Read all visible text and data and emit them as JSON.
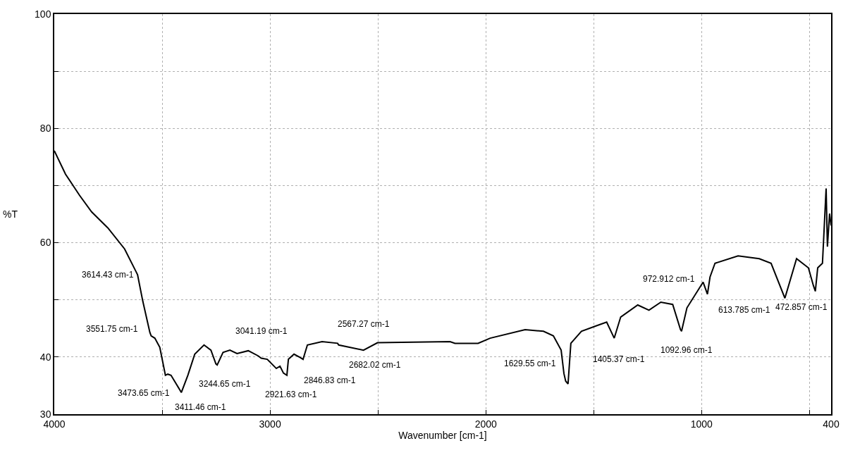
{
  "chart_data": {
    "type": "line",
    "xlabel": "Wavenumber [cm-1]",
    "ylabel": "%T",
    "xlim": [
      4000,
      400
    ],
    "ylim": [
      30,
      100
    ],
    "xticks": [
      4000,
      {
        "value": 3500,
        "label": null
      },
      3000,
      {
        "value": 2500,
        "label": null
      },
      2000,
      {
        "value": 1500,
        "label": null
      },
      1000,
      {
        "value": 500,
        "label": null
      },
      400
    ],
    "yticks": [
      30,
      40,
      {
        "value": 50,
        "label": null
      },
      60,
      {
        "value": 70,
        "label": null
      },
      80,
      {
        "value": 90,
        "label": null
      },
      100
    ],
    "grid": true,
    "marker": "none",
    "line_style": "solid",
    "series": [
      {
        "color": "#000000",
        "x": [
          4000,
          3948,
          3883,
          3827,
          3752,
          3674,
          3622,
          3614,
          3590,
          3557,
          3551,
          3534,
          3511,
          3485,
          3474,
          3459,
          3411,
          3381,
          3349,
          3306,
          3274,
          3251,
          3245,
          3218,
          3186,
          3153,
          3101,
          3055,
          3041,
          3013,
          2971,
          2954,
          2938,
          2922,
          2915,
          2889,
          2860,
          2847,
          2827,
          2759,
          2687,
          2682,
          2567,
          2502,
          2166,
          2143,
          2036,
          1980,
          1818,
          1733,
          1687,
          1651,
          1638,
          1630,
          1619,
          1606,
          1557,
          1492,
          1440,
          1405,
          1375,
          1296,
          1244,
          1189,
          1134,
          1098,
          1093,
          1068,
          993,
          973,
          961,
          938,
          831,
          733,
          678,
          614,
          560,
          505,
          482,
          473,
          462,
          440,
          423,
          417,
          407,
          400
        ],
        "values": [
          76.1,
          72,
          68.3,
          65.4,
          62.6,
          58.9,
          55,
          54.4,
          49.8,
          44.3,
          43.7,
          43.3,
          41.7,
          36.8,
          37,
          36.8,
          33.8,
          36.8,
          40.5,
          42.1,
          41.2,
          38.8,
          38.6,
          40.8,
          41.2,
          40.6,
          41.1,
          40.2,
          39.8,
          39.6,
          38.0,
          38.4,
          37.2,
          36.8,
          39.6,
          40.5,
          39.9,
          39.6,
          42.1,
          42.7,
          42.4,
          42.1,
          41.2,
          42.5,
          42.7,
          42.4,
          42.4,
          43.3,
          44.8,
          44.5,
          43.7,
          41.2,
          37.1,
          35.8,
          35.3,
          42.4,
          44.5,
          45.4,
          46.1,
          43.3,
          47.0,
          49.1,
          48.2,
          49.6,
          49.2,
          44.8,
          44.5,
          48.6,
          53.1,
          51.0,
          54.0,
          56.4,
          57.7,
          57.2,
          56.4,
          50.3,
          57.2,
          55.6,
          52.5,
          51.5,
          55.6,
          56.4,
          69.5,
          59.3,
          65.1,
          63
        ]
      }
    ],
    "annotations": [
      {
        "text": "3614.43 cm-1",
        "x": 3614,
        "y": 54.4
      },
      {
        "text": "3551.75 cm-1",
        "x": 3551,
        "y": 43.7
      },
      {
        "text": "3473.65 cm-1",
        "x": 3474,
        "y": 37
      },
      {
        "text": "3411.46 cm-1",
        "x": 3411,
        "y": 33.8
      },
      {
        "text": "3244.65 cm-1",
        "x": 3245,
        "y": 38.6
      },
      {
        "text": "3041.19 cm-1",
        "x": 3041,
        "y": 39.8
      },
      {
        "text": "2921.63 cm-1",
        "x": 2922,
        "y": 36.8
      },
      {
        "text": "2846.83 cm-1",
        "x": 2847,
        "y": 39.6
      },
      {
        "text": "2682.02 cm-1",
        "x": 2682,
        "y": 42.1
      },
      {
        "text": "2567.27 cm-1",
        "x": 2567,
        "y": 41.2
      },
      {
        "text": "1629.55 cm-1",
        "x": 1630,
        "y": 35.8
      },
      {
        "text": "1405.37 cm-1",
        "x": 1405,
        "y": 43.3
      },
      {
        "text": "1092.96 cm-1",
        "x": 1093,
        "y": 44.5
      },
      {
        "text": "972.912 cm-1",
        "x": 973,
        "y": 51.0
      },
      {
        "text": "613.785 cm-1",
        "x": 614,
        "y": 50.3
      },
      {
        "text": "472.857 cm-1",
        "x": 473,
        "y": 51.5
      }
    ]
  }
}
